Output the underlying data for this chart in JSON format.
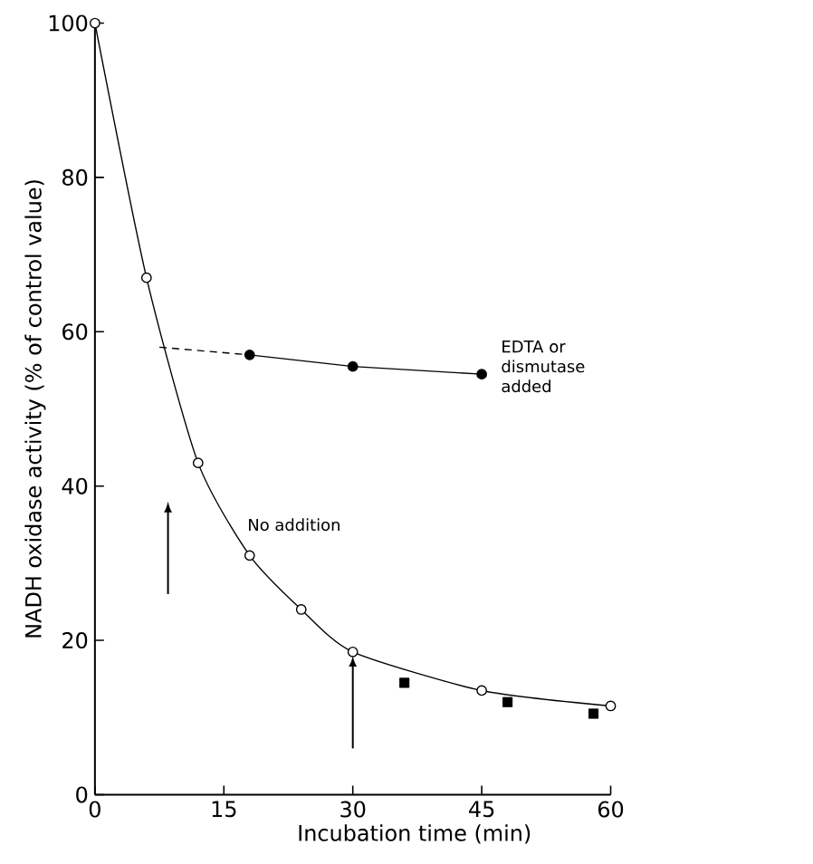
{
  "chart_data": {
    "type": "line",
    "xlabel": "Incubation time (min)",
    "ylabel": "NADH oxidase activity  (% of control value)",
    "xlim": [
      0,
      60
    ],
    "ylim": [
      0,
      100
    ],
    "xticks": [
      0,
      15,
      30,
      45,
      60
    ],
    "yticks": [
      0,
      20,
      40,
      60,
      80,
      100
    ],
    "grid": false,
    "series": [
      {
        "name": "No addition",
        "marker": "circle",
        "line_style": "solid",
        "color": "#000000",
        "x": [
          0,
          6,
          12,
          18,
          24,
          30,
          45,
          60
        ],
        "values": [
          100,
          67,
          43,
          31,
          24,
          18.5,
          13.5,
          11.5
        ]
      },
      {
        "type": "scatter",
        "marker": "square",
        "color": "#000000",
        "x": [
          36,
          48,
          58
        ],
        "values": [
          14.5,
          12,
          10.5
        ]
      },
      {
        "name": "EDTA or dismutase added",
        "marker": "circle",
        "line_style": "solid",
        "color": "#000000",
        "x": [
          18,
          30,
          45
        ],
        "values": [
          57,
          55.5,
          54.5
        ]
      },
      {
        "marker": "none",
        "line_style": "dashed",
        "color": "#000000",
        "x": [
          7.5,
          18
        ],
        "values": [
          58,
          57
        ]
      }
    ]
  }
}
